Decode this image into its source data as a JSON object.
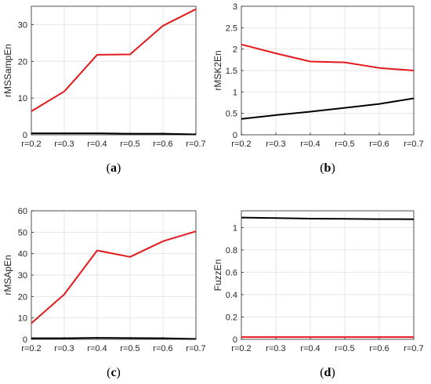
{
  "colors": {
    "red": "#e31a1c",
    "black": "#000000",
    "grid": "#e6e6e6",
    "axis": "#262626"
  },
  "chart_data": [
    {
      "type": "line",
      "caption_letter": "a",
      "ylabel": "rMSSampEn",
      "categories": [
        "r=0.2",
        "r=0.3",
        "r=0.4",
        "r=0.5",
        "r=0.6",
        "r=0.7"
      ],
      "ylim": [
        0,
        35
      ],
      "yticks": [
        0,
        10,
        20,
        30
      ],
      "grid": true,
      "series": [
        {
          "color": "red",
          "values": [
            6.4,
            11.8,
            21.8,
            21.9,
            29.7,
            34.2
          ]
        },
        {
          "color": "black",
          "values": [
            0.4,
            0.4,
            0.4,
            0.3,
            0.3,
            0.1
          ]
        }
      ]
    },
    {
      "type": "line",
      "caption_letter": "b",
      "ylabel": "rMSK2En",
      "categories": [
        "r=0.2",
        "r=0.3",
        "r=0.4",
        "r=0.5",
        "r=0.6",
        "r=0.7"
      ],
      "ylim": [
        0,
        3
      ],
      "yticks": [
        0,
        0.5,
        1,
        1.5,
        2,
        2.5,
        3
      ],
      "grid": true,
      "series": [
        {
          "color": "red",
          "values": [
            2.11,
            1.9,
            1.71,
            1.69,
            1.56,
            1.5
          ]
        },
        {
          "color": "black",
          "values": [
            0.37,
            0.46,
            0.54,
            0.63,
            0.72,
            0.85
          ]
        }
      ]
    },
    {
      "type": "line",
      "caption_letter": "c",
      "ylabel": "rMSApEn",
      "categories": [
        "r=0.2",
        "r=0.3",
        "r=0.4",
        "r=0.5",
        "r=0.6",
        "r=0.7"
      ],
      "ylim": [
        0,
        60
      ],
      "yticks": [
        0,
        10,
        20,
        30,
        40,
        50,
        60
      ],
      "grid": true,
      "series": [
        {
          "color": "red",
          "values": [
            7.5,
            21.0,
            41.5,
            38.5,
            45.8,
            50.4
          ]
        },
        {
          "color": "black",
          "values": [
            0.5,
            0.5,
            0.7,
            0.6,
            0.5,
            0.2
          ]
        }
      ]
    },
    {
      "type": "line",
      "caption_letter": "d",
      "ylabel": "FuzzEn",
      "categories": [
        "r=0.2",
        "r=0.3",
        "r=0.4",
        "r=0.5",
        "r=0.6",
        "r=0.7"
      ],
      "ylim": [
        0,
        1.15
      ],
      "yticks": [
        0,
        0.2,
        0.4,
        0.6,
        0.8,
        1
      ],
      "grid": true,
      "series": [
        {
          "color": "red",
          "values": [
            0.02,
            0.02,
            0.02,
            0.02,
            0.02,
            0.02
          ]
        },
        {
          "color": "black",
          "values": [
            1.09,
            1.085,
            1.08,
            1.078,
            1.076,
            1.075
          ]
        }
      ]
    }
  ]
}
